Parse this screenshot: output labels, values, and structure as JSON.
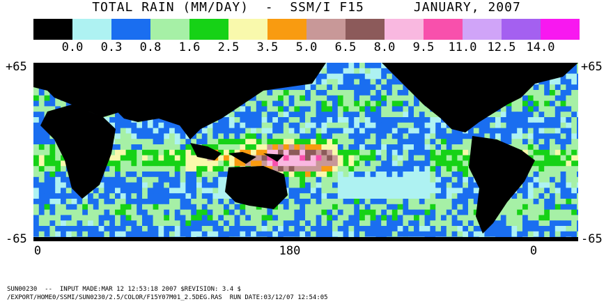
{
  "title": {
    "left": "TOTAL RAIN (MM/DAY)",
    "dash": "-",
    "sensor": "SSM/I F15",
    "date": "JANUARY, 2007"
  },
  "legend": {
    "colors": [
      "#000000",
      "#aef2f2",
      "#1a6ef0",
      "#a6f0a6",
      "#16d216",
      "#f9f9ac",
      "#f99b10",
      "#c89898",
      "#8c5a5a",
      "#f9b8e0",
      "#f850ac",
      "#d0a4f8",
      "#a460f0",
      "#f818f0"
    ],
    "labels": [
      "0.0",
      "0.3",
      "0.8",
      "1.6",
      "2.5",
      "3.5",
      "5.0",
      "6.5",
      "8.0",
      "9.5",
      "11.0",
      "12.5",
      "14.0"
    ]
  },
  "axes": {
    "lat_top_left": "+65",
    "lat_top_right": "+65",
    "lat_bottom_left": "-65",
    "lat_bottom_right": "-65",
    "lon_labels": [
      "0",
      "180",
      "0"
    ]
  },
  "footer": {
    "line1": "SUN00230  --  INPUT MADE:MAR 12 12:53:18 2007 $REVISION: 3.4 $",
    "line2": "/EXPORT/HOME0/SSMI/SUN0230/2.5/COLOR/F15Y07M01_2.5DEG.RAS  RUN DATE:03/12/07 12:54:05"
  }
}
